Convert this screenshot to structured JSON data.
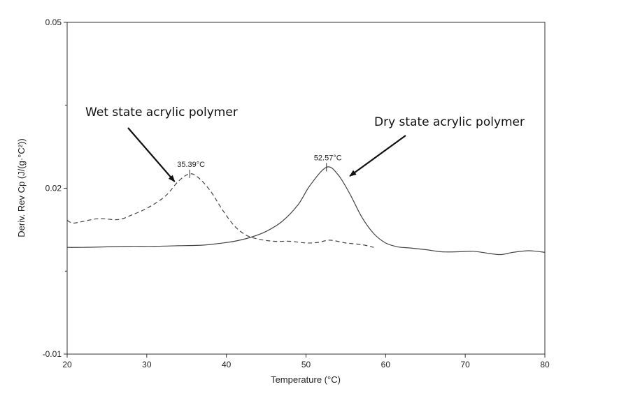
{
  "chart_data": {
    "type": "line",
    "title": "",
    "xlabel": "Temperature (°C)",
    "ylabel": "Deriv. Rev Cp (J/(g·°C²))",
    "xlim": [
      20,
      80
    ],
    "ylim": [
      -0.01,
      0.05
    ],
    "grid": false,
    "x_ticks": [
      20,
      30,
      40,
      50,
      60,
      70,
      80
    ],
    "x_tick_labels": [
      "20",
      "30",
      "40",
      "50",
      "60",
      "70",
      "80"
    ],
    "y_labeled_ticks": [
      -0.01,
      0.02,
      0.05
    ],
    "y_tick_labels": [
      "-0.01",
      "0.02",
      "0.05"
    ],
    "series": [
      {
        "line_style": "dashed",
        "x": [
          20,
          20.7,
          22,
          24,
          26,
          27,
          28,
          29.5,
          31,
          32.5,
          34,
          35.39,
          36.5,
          38,
          39.5,
          41,
          42.5,
          44,
          46,
          48,
          50,
          51.5,
          53,
          55,
          57,
          58.5
        ],
        "y": [
          0.0142,
          0.0137,
          0.014,
          0.0145,
          0.0143,
          0.0145,
          0.0151,
          0.016,
          0.0172,
          0.0188,
          0.0213,
          0.0226,
          0.0219,
          0.0195,
          0.0161,
          0.0132,
          0.0115,
          0.0108,
          0.0104,
          0.0104,
          0.0101,
          0.0102,
          0.0106,
          0.0101,
          0.0098,
          0.0093
        ]
      },
      {
        "line_style": "solid",
        "x": [
          20,
          22,
          25,
          28,
          31,
          34,
          37,
          39,
          41,
          43,
          45,
          47,
          49,
          50.5,
          52.57,
          54,
          55.5,
          57,
          58.5,
          60,
          61.5,
          63,
          65,
          67,
          69,
          71,
          73,
          74.5,
          76,
          78,
          80
        ],
        "y": [
          0.0093,
          0.0093,
          0.0094,
          0.0095,
          0.0095,
          0.0096,
          0.0097,
          0.01,
          0.0104,
          0.0111,
          0.0122,
          0.014,
          0.017,
          0.0205,
          0.0238,
          0.0225,
          0.019,
          0.0148,
          0.0118,
          0.0101,
          0.0094,
          0.0092,
          0.0089,
          0.0085,
          0.0085,
          0.0086,
          0.0082,
          0.008,
          0.0084,
          0.0087,
          0.0084
        ]
      }
    ],
    "peaks": [
      {
        "x": 35.39,
        "y": 0.0226,
        "label": "35.39°C"
      },
      {
        "x": 52.57,
        "y": 0.0238,
        "label": "52.57°C"
      }
    ],
    "annotations": [
      {
        "text": "Wet state acrylic polymer",
        "points_to_x": 33.5,
        "points_to_y": 0.0212
      },
      {
        "text": "Dry state acrylic polymer",
        "points_to_x": 55.5,
        "points_to_y": 0.0222
      }
    ]
  }
}
